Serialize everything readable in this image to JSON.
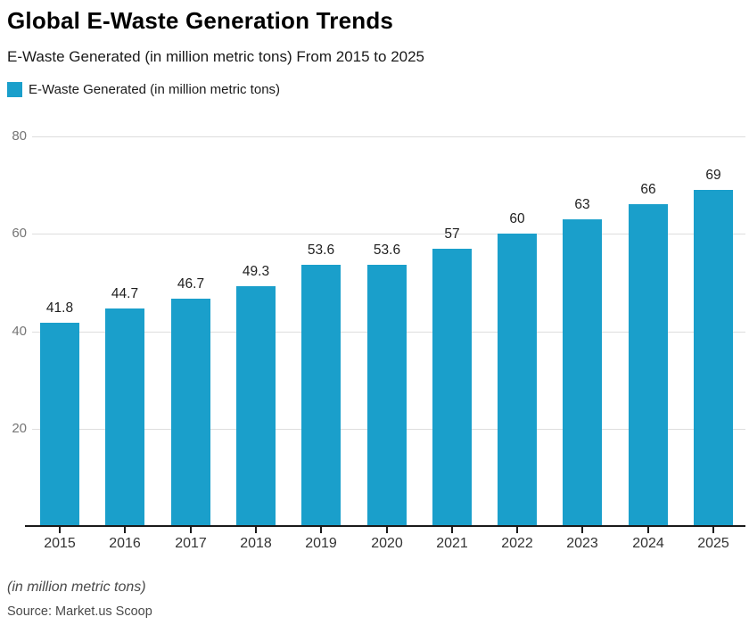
{
  "header": {
    "title": "Global E-Waste Generation Trends",
    "subtitle": "E-Waste Generated (in million metric tons) From 2015 to 2025"
  },
  "legend": {
    "label": "E-Waste Generated (in million metric tons)",
    "swatch_color": "#1A9FCB"
  },
  "chart_data": {
    "type": "bar",
    "title": "Global E-Waste Generation Trends",
    "subtitle": "E-Waste Generated (in million metric tons) From 2015 to 2025",
    "categories": [
      "2015",
      "2016",
      "2017",
      "2018",
      "2019",
      "2020",
      "2021",
      "2022",
      "2023",
      "2024",
      "2025"
    ],
    "series": [
      {
        "name": "E-Waste Generated (in million metric tons)",
        "values": [
          41.8,
          44.7,
          46.7,
          49.3,
          53.6,
          53.6,
          57,
          60,
          63,
          66,
          69
        ]
      }
    ],
    "xlabel": "",
    "ylabel": "",
    "ylim": [
      0,
      80
    ],
    "yticks": [
      20,
      40,
      60,
      80
    ],
    "grid": "horizontal",
    "legend_position": "top-left",
    "bar_color": "#1A9FCB",
    "data_labels_shown": true
  },
  "footer": {
    "note": "(in million metric tons)",
    "source": "Source: Market.us Scoop"
  }
}
